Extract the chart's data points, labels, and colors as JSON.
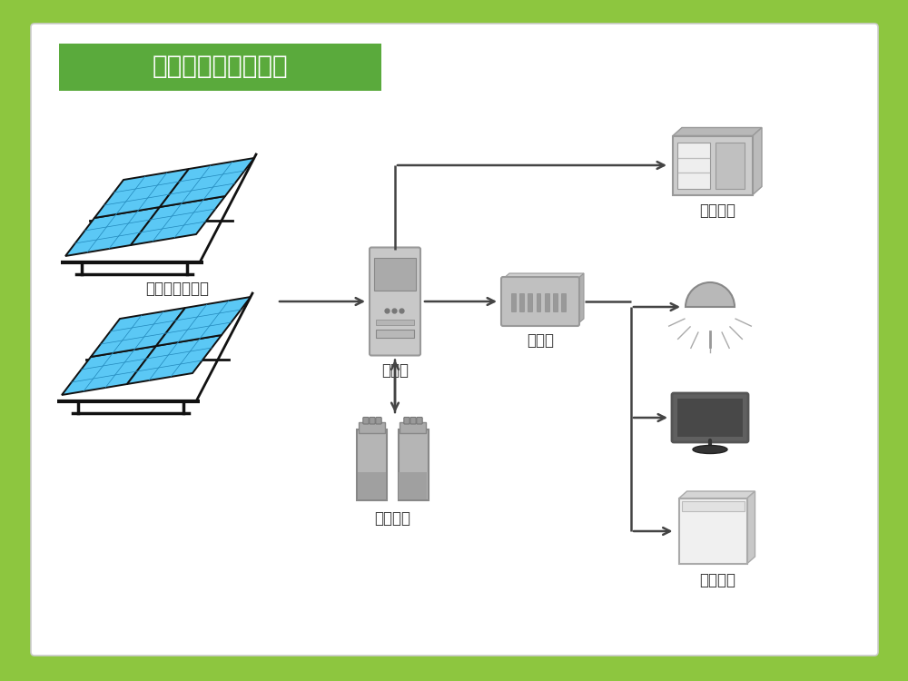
{
  "title": "独立光伏系统示意图",
  "title_bg": "#5aaa3c",
  "title_color": "#ffffff",
  "outer_bg": "#8dc63f",
  "inner_bg": "#ffffff",
  "border_color": "#cccccc",
  "labels": {
    "solar": "太阳能电池方阵",
    "controller": "控制器",
    "inverter": "逆变器",
    "battery": "蓄电池组",
    "dc_load": "直流负载",
    "ac_load": "交流负载"
  },
  "solar_panel_color": "#5bc8f5",
  "solar_panel_grid": "#2288bb",
  "solar_frame_color": "#111111",
  "arrow_color": "#444444",
  "font_size_title": 20,
  "font_size_label": 12
}
